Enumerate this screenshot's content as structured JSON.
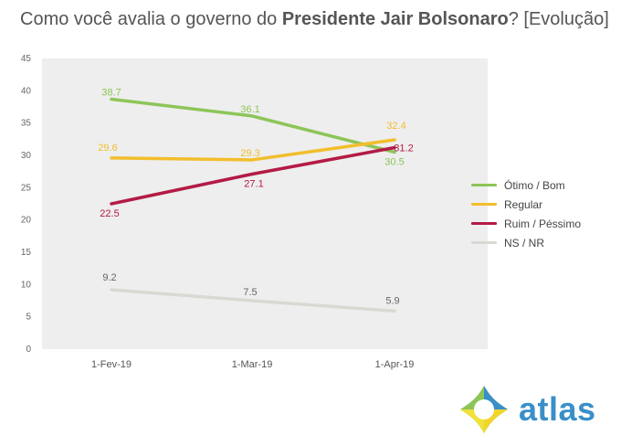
{
  "title": {
    "prefix": "Como você avalia o governo do ",
    "bold": "Presidente Jair Bolsonaro",
    "suffix": "? [Evolução]"
  },
  "chart_data": {
    "type": "line",
    "x": [
      "1-Fev-19",
      "1-Mar-19",
      "1-Apr-19"
    ],
    "ylim": [
      0,
      45
    ],
    "yticks": [
      0,
      5,
      10,
      15,
      20,
      25,
      30,
      35,
      40,
      45
    ],
    "grid": false,
    "legend_position": "right",
    "series": [
      {
        "name": "Ótimo / Bom",
        "values": [
          38.7,
          36.1,
          30.5
        ],
        "color": "#8dc558",
        "labels": [
          "38.7",
          "36.1",
          "30.5"
        ]
      },
      {
        "name": "Regular",
        "values": [
          29.6,
          29.3,
          32.4
        ],
        "color": "#f2be2c",
        "labels": [
          "29.6",
          "29.3",
          "32.4"
        ]
      },
      {
        "name": "Ruim / Péssimo",
        "values": [
          22.5,
          27.1,
          31.2
        ],
        "color": "#b31b45",
        "labels": [
          "22.5",
          "27.1",
          "31.2"
        ]
      },
      {
        "name": "NS / NR",
        "values": [
          9.2,
          7.5,
          5.9
        ],
        "color": "#d9d9d4",
        "labels": [
          "9.2",
          "7.5",
          "5.9"
        ]
      }
    ]
  },
  "logo": {
    "text": "atlas"
  }
}
